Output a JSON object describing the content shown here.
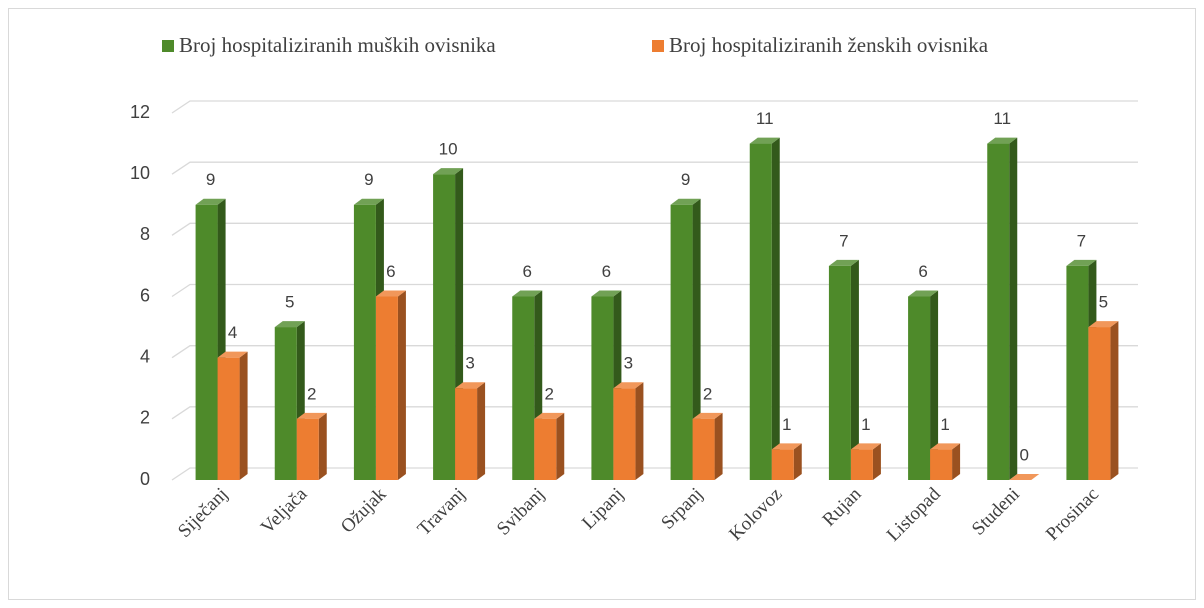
{
  "chart_data": {
    "type": "bar",
    "categories": [
      "Siječanj",
      "Veljača",
      "Ožujak",
      "Travanj",
      "Svibanj",
      "Lipanj",
      "Srpanj",
      "Kolovoz",
      "Rujan",
      "Listopad",
      "Studeni",
      "Prosinac"
    ],
    "series": [
      {
        "name": "Broj hospitaliziranih muških ovisnika",
        "color": "#4e8a2a",
        "values": [
          9,
          5,
          9,
          10,
          6,
          6,
          9,
          11,
          7,
          6,
          11,
          7
        ]
      },
      {
        "name": "Broj hospitaliziranih ženskih ovisnika",
        "color": "#ed7d31",
        "values": [
          4,
          2,
          6,
          3,
          2,
          3,
          2,
          1,
          1,
          1,
          0,
          5
        ]
      }
    ],
    "ylim": [
      0,
      12
    ],
    "yticks": [
      0,
      2,
      4,
      6,
      8,
      10,
      12
    ],
    "grid": true,
    "legend": "top"
  }
}
